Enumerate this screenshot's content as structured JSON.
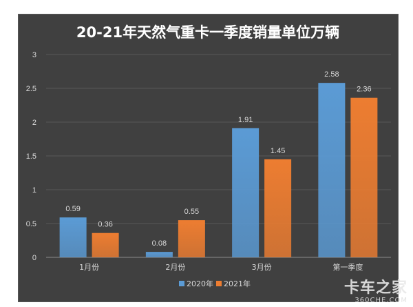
{
  "chart_data": {
    "type": "bar",
    "title": "20-21年天然气重卡一季度销量单位万辆",
    "categories": [
      "1月份",
      "2月份",
      "3月份",
      "第一季度"
    ],
    "series": [
      {
        "name": "2020年",
        "color": "#5b9bd5",
        "values": [
          0.59,
          0.08,
          1.91,
          2.58
        ]
      },
      {
        "name": "2021年",
        "color": "#ed7d31",
        "values": [
          0.36,
          0.55,
          1.45,
          2.36
        ]
      }
    ],
    "ylim": [
      0,
      3
    ],
    "yticks": [
      "0",
      "0.5",
      "1",
      "1.5",
      "2",
      "2.5",
      "3"
    ],
    "grid": true,
    "legend": "bottom"
  },
  "watermark": {
    "main": "卡车之家",
    "sub": "360CHE.COM"
  }
}
